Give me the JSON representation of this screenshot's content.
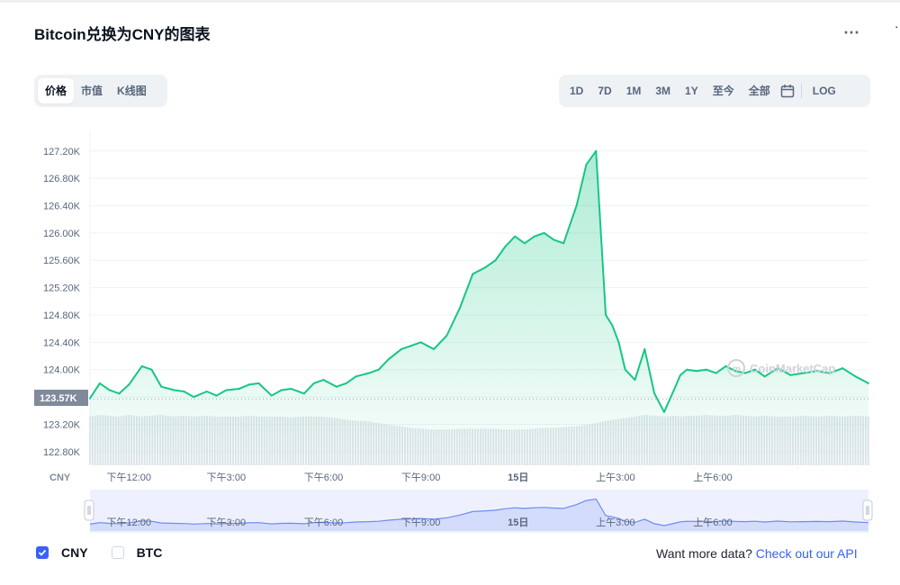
{
  "title": "Bitcoin兑换为CNY的图表",
  "menu_icon": "more-horizontal-icon",
  "chart_tabs": [
    {
      "label": "价格",
      "active": true
    },
    {
      "label": "市值",
      "active": false
    },
    {
      "label": "K线图",
      "active": false
    }
  ],
  "ranges": [
    {
      "label": "1D",
      "active": true
    },
    {
      "label": "7D",
      "active": false
    },
    {
      "label": "1M",
      "active": false
    },
    {
      "label": "3M",
      "active": false
    },
    {
      "label": "1Y",
      "active": false
    },
    {
      "label": "至今",
      "active": false
    },
    {
      "label": "全部",
      "active": false
    }
  ],
  "calendar_icon": "calendar-icon",
  "log_label": "LOG",
  "currency_label": "CNY",
  "current_price_label": "123.57K",
  "watermark": "CoinMarketCap",
  "checkboxes": [
    {
      "label": "CNY",
      "checked": true
    },
    {
      "label": "BTC",
      "checked": false
    }
  ],
  "more_data_text": "Want more data?",
  "more_data_link": "Check out our API",
  "colors": {
    "up": "#16c784",
    "down": "#ea3943",
    "accent": "#3861fb",
    "navigator": "#6c8cf2"
  },
  "chart_data": {
    "type": "area",
    "title": "Bitcoin兑换为CNY的图表",
    "currency": "CNY",
    "ylim": [
      122.6,
      127.5
    ],
    "y_unit": "K",
    "yticks": [
      "122.80K",
      "123.20K",
      "123.60K",
      "124.00K",
      "124.40K",
      "124.80K",
      "125.20K",
      "125.60K",
      "126.00K",
      "126.40K",
      "126.80K",
      "127.20K"
    ],
    "ytick_values": [
      122.8,
      123.2,
      123.6,
      124.0,
      124.4,
      124.8,
      125.2,
      125.6,
      126.0,
      126.4,
      126.8,
      127.2
    ],
    "reference_price": 123.57,
    "xlim": [
      10.8,
      34.8
    ],
    "xticks": [
      {
        "label": "下午12:00",
        "hour": 12
      },
      {
        "label": "下午3:00",
        "hour": 15
      },
      {
        "label": "下午6:00",
        "hour": 18
      },
      {
        "label": "下午9:00",
        "hour": 21
      },
      {
        "label": "15日",
        "hour": 24
      },
      {
        "label": "上午3:00",
        "hour": 27
      },
      {
        "label": "上午6:00",
        "hour": 30
      }
    ],
    "series": [
      {
        "x": [
          10.8,
          11.1,
          11.4,
          11.7,
          12.0,
          12.4,
          12.7,
          13.0,
          13.4,
          13.7,
          14.0,
          14.4,
          14.7,
          15.0,
          15.4,
          15.7,
          16.0,
          16.4,
          16.7,
          17.0,
          17.4,
          17.7,
          18.0,
          18.4,
          18.7,
          19.0,
          19.4,
          19.7,
          20.0,
          20.4,
          20.7,
          21.0,
          21.4,
          21.8,
          22.2,
          22.6,
          23.0,
          23.3,
          23.6,
          23.9,
          24.2,
          24.5,
          24.8,
          25.1,
          25.4,
          25.8,
          26.1,
          26.4,
          26.7,
          26.9,
          27.1,
          27.3,
          27.6,
          27.9,
          28.2,
          28.5,
          28.8,
          29.0,
          29.2,
          29.5,
          29.8,
          30.1,
          30.4,
          30.7,
          31.0,
          31.3,
          31.6,
          32.0,
          32.4,
          32.8,
          33.2,
          33.6,
          34.0,
          34.4,
          34.8
        ],
        "y": [
          123.58,
          123.8,
          123.7,
          123.65,
          123.78,
          124.05,
          124.0,
          123.75,
          123.7,
          123.68,
          123.6,
          123.68,
          123.62,
          123.7,
          123.72,
          123.78,
          123.8,
          123.62,
          123.7,
          123.72,
          123.65,
          123.8,
          123.85,
          123.75,
          123.8,
          123.9,
          123.95,
          124.0,
          124.15,
          124.3,
          124.35,
          124.4,
          124.3,
          124.5,
          124.9,
          125.4,
          125.5,
          125.6,
          125.8,
          125.95,
          125.85,
          125.95,
          126.0,
          125.9,
          125.85,
          126.4,
          127.0,
          127.2,
          124.8,
          124.65,
          124.4,
          124.0,
          123.85,
          124.3,
          123.65,
          123.38,
          123.7,
          123.92,
          124.0,
          123.98,
          124.0,
          123.95,
          124.05,
          123.98,
          123.95,
          124.0,
          123.9,
          124.02,
          123.92,
          123.95,
          123.98,
          123.95,
          124.02,
          123.9,
          123.8
        ],
        "volume": [
          0.6,
          0.62,
          0.61,
          0.6,
          0.62,
          0.6,
          0.61,
          0.62,
          0.6,
          0.61,
          0.6,
          0.61,
          0.6,
          0.6,
          0.6,
          0.61,
          0.6,
          0.6,
          0.6,
          0.59,
          0.6,
          0.6,
          0.6,
          0.58,
          0.56,
          0.55,
          0.54,
          0.52,
          0.5,
          0.48,
          0.46,
          0.45,
          0.44,
          0.44,
          0.45,
          0.45,
          0.45,
          0.45,
          0.44,
          0.44,
          0.44,
          0.45,
          0.46,
          0.46,
          0.47,
          0.48,
          0.5,
          0.52,
          0.55,
          0.56,
          0.57,
          0.58,
          0.6,
          0.62,
          0.61,
          0.6,
          0.61,
          0.6,
          0.61,
          0.61,
          0.62,
          0.61,
          0.61,
          0.62,
          0.61,
          0.6,
          0.61,
          0.6,
          0.6,
          0.61,
          0.6,
          0.61,
          0.6,
          0.61,
          0.6
        ]
      }
    ]
  }
}
